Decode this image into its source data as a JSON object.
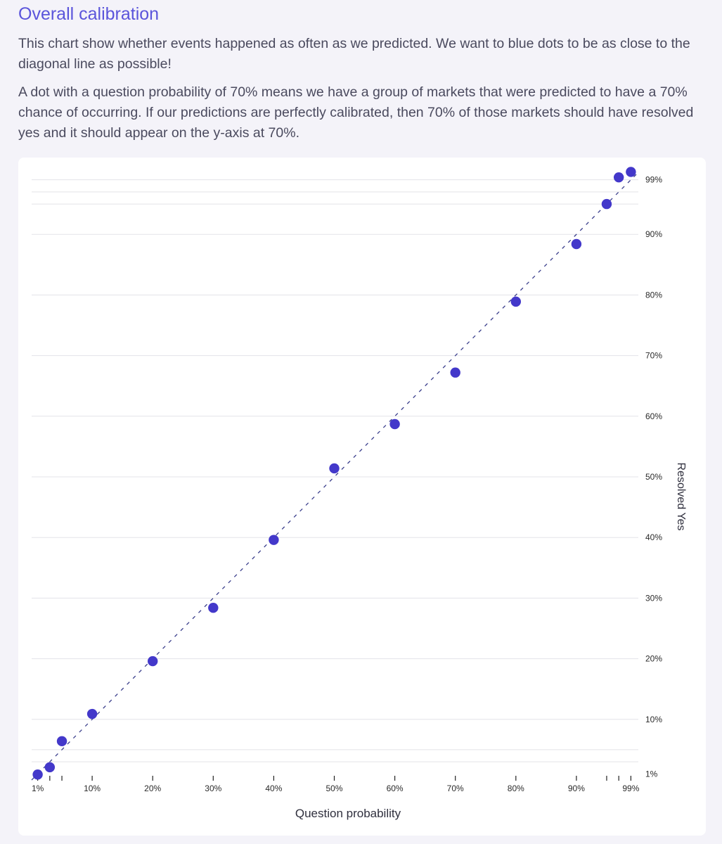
{
  "header": {
    "title": "Overall calibration",
    "paragraph1": "This chart show whether events happened as often as we predicted. We want to blue dots to be as close to the diagonal line as possible!",
    "paragraph2": "A dot with a question probability of 70% means we have a group of markets that were predicted to have a 70% chance of occurring. If our predictions are perfectly calibrated, then 70% of those markets should have resolved yes and it should appear on the y-axis at 70%."
  },
  "colors": {
    "title": "#5b55db",
    "dot": "#4338ca",
    "diagonal": "#3b3f8c",
    "grid": "#e3e3e8",
    "background": "#f4f3f9",
    "card": "#ffffff"
  },
  "chart_data": {
    "type": "scatter",
    "xlabel": "Question probability",
    "ylabel": "Resolved Yes",
    "xlim": [
      0,
      100
    ],
    "ylim": [
      0,
      100
    ],
    "grid": true,
    "reference_line": "diagonal y = x (dashed)",
    "x_tick_labels": [
      {
        "x": 1,
        "label": "1%"
      },
      {
        "x": 10,
        "label": "10%"
      },
      {
        "x": 20,
        "label": "20%"
      },
      {
        "x": 30,
        "label": "30%"
      },
      {
        "x": 40,
        "label": "40%"
      },
      {
        "x": 50,
        "label": "50%"
      },
      {
        "x": 60,
        "label": "60%"
      },
      {
        "x": 70,
        "label": "70%"
      },
      {
        "x": 80,
        "label": "80%"
      },
      {
        "x": 90,
        "label": "90%"
      },
      {
        "x": 99,
        "label": "99%"
      }
    ],
    "x_minor_ticks": [
      3,
      5,
      95,
      97
    ],
    "y_tick_labels": [
      {
        "y": 1,
        "label": "1%"
      },
      {
        "y": 10,
        "label": "10%"
      },
      {
        "y": 20,
        "label": "20%"
      },
      {
        "y": 30,
        "label": "30%"
      },
      {
        "y": 40,
        "label": "40%"
      },
      {
        "y": 50,
        "label": "50%"
      },
      {
        "y": 60,
        "label": "60%"
      },
      {
        "y": 70,
        "label": "70%"
      },
      {
        "y": 80,
        "label": "80%"
      },
      {
        "y": 90,
        "label": "90%"
      },
      {
        "y": 99,
        "label": "99%"
      }
    ],
    "y_gridlines": [
      3,
      5,
      10,
      20,
      30,
      40,
      50,
      60,
      70,
      80,
      90,
      95,
      97,
      99
    ],
    "points": [
      {
        "x": 1,
        "y": 0.9
      },
      {
        "x": 3,
        "y": 2.1
      },
      {
        "x": 5,
        "y": 6.4
      },
      {
        "x": 10,
        "y": 10.9
      },
      {
        "x": 20,
        "y": 19.6
      },
      {
        "x": 30,
        "y": 28.4
      },
      {
        "x": 40,
        "y": 39.6
      },
      {
        "x": 50,
        "y": 51.4
      },
      {
        "x": 60,
        "y": 58.7
      },
      {
        "x": 70,
        "y": 67.2
      },
      {
        "x": 80,
        "y": 78.9
      },
      {
        "x": 90,
        "y": 88.4
      },
      {
        "x": 95,
        "y": 95.0
      },
      {
        "x": 97,
        "y": 99.4
      },
      {
        "x": 99,
        "y": 100.3
      }
    ]
  }
}
